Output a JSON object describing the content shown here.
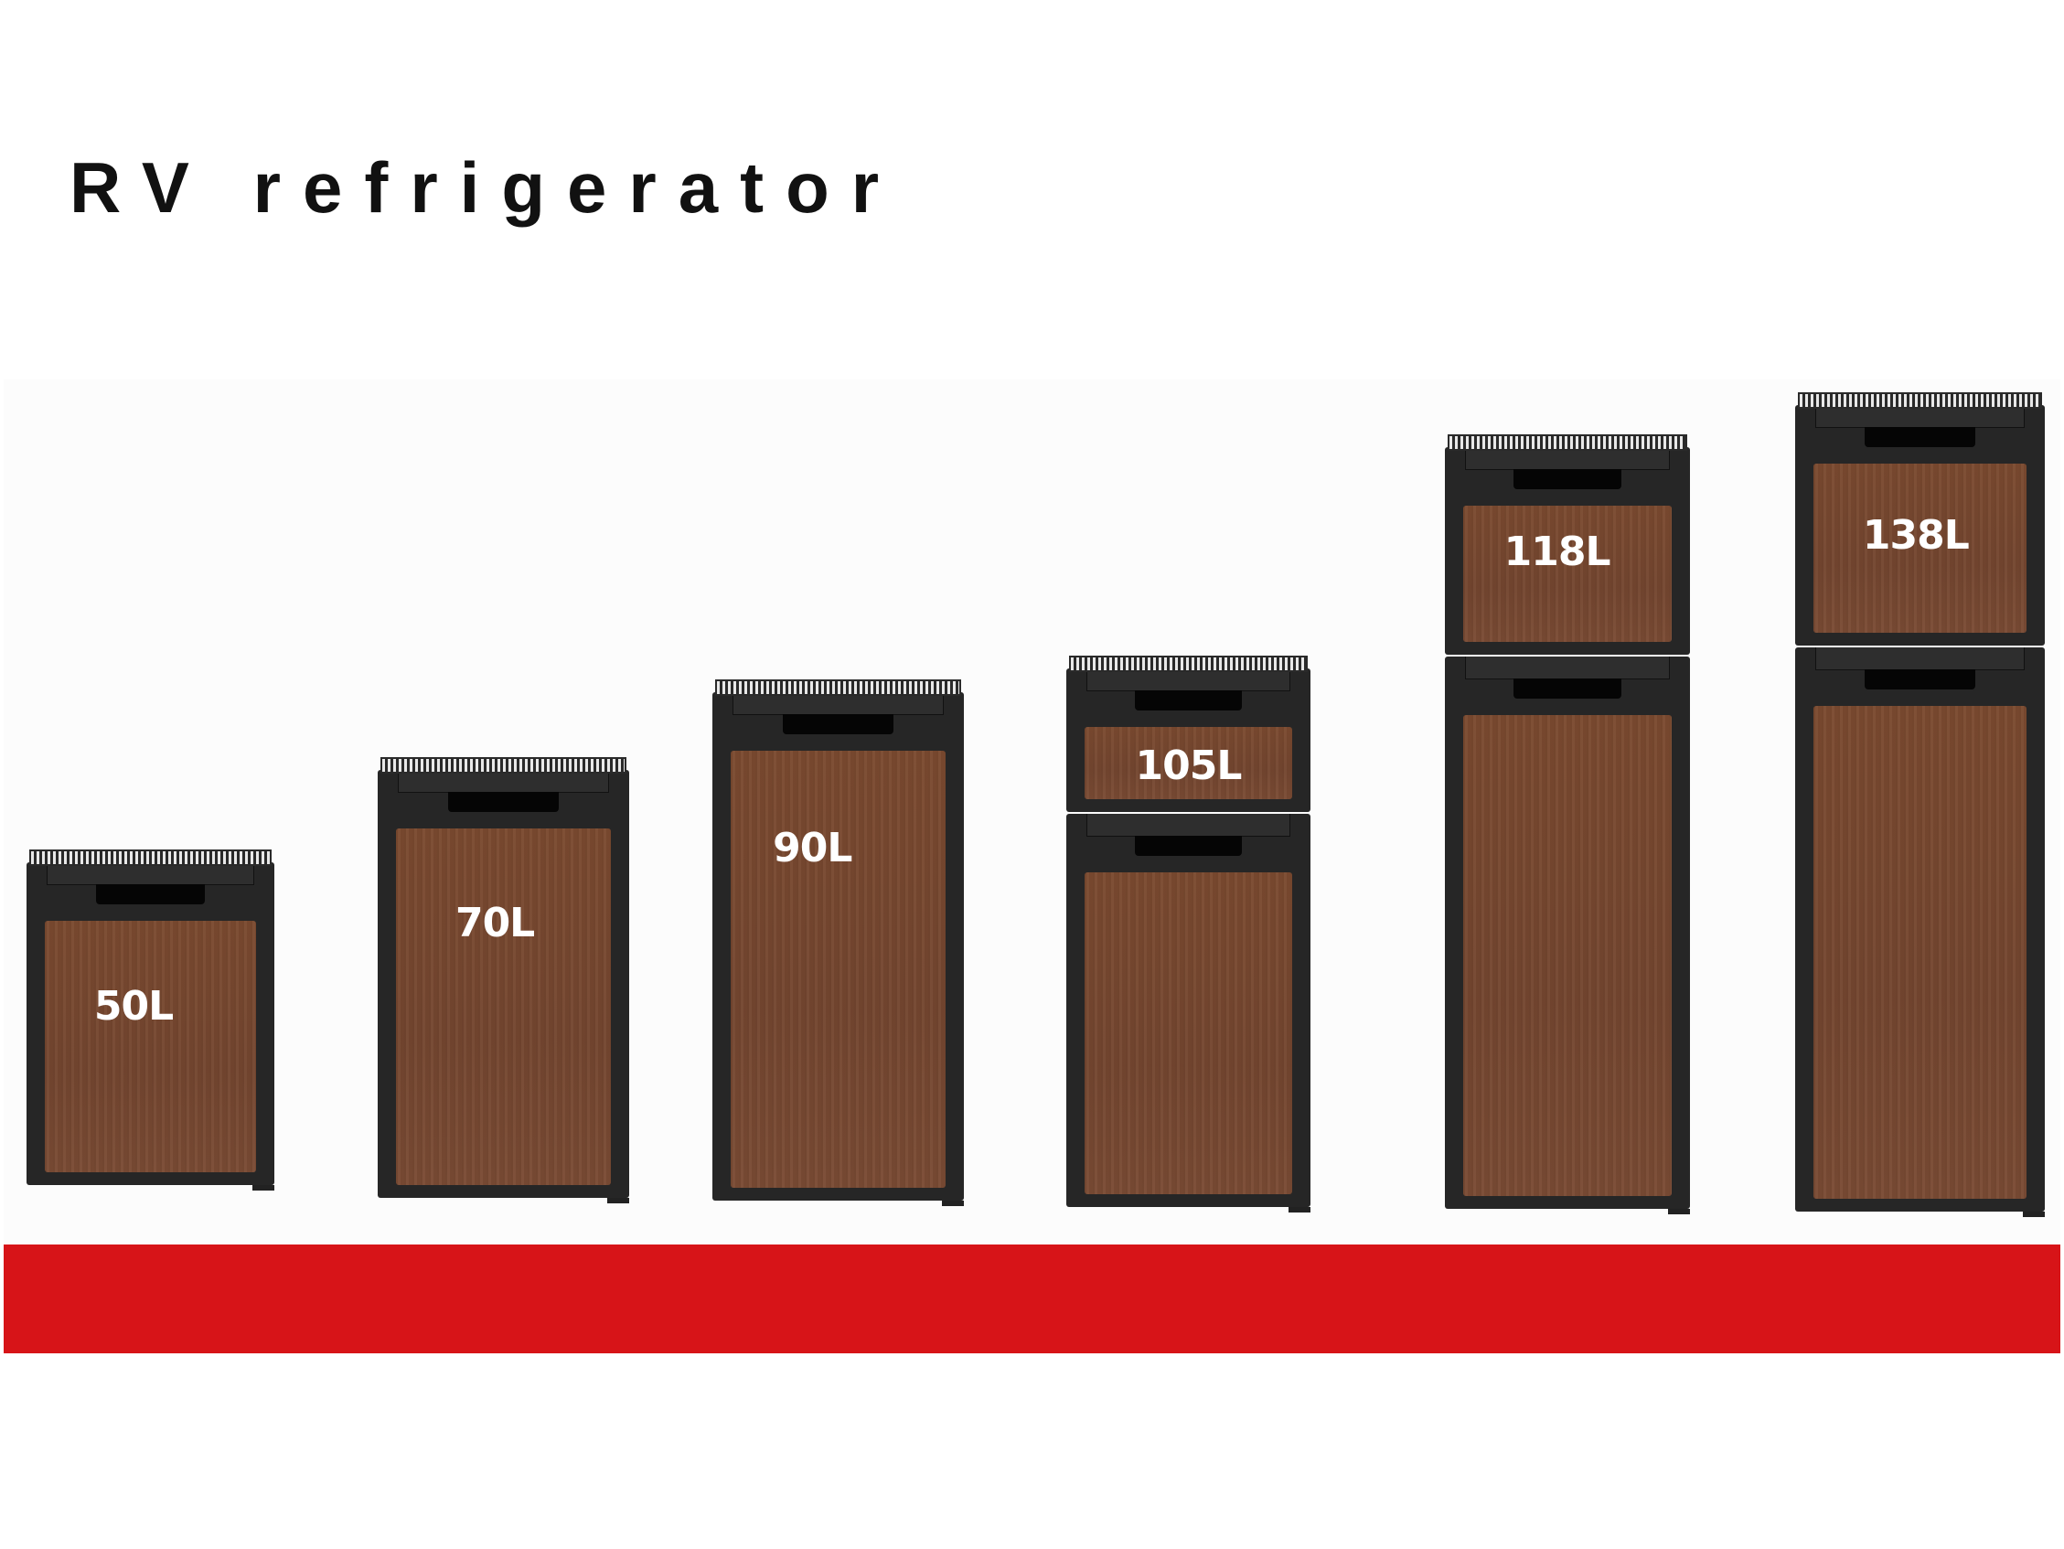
{
  "title": "RV refrigerator",
  "colors": {
    "band": "#d71418",
    "cabinet": "#262626",
    "door_wood": "#7a4a32"
  },
  "fridges": [
    {
      "label": "50L",
      "doors": 1
    },
    {
      "label": "70L",
      "doors": 1
    },
    {
      "label": "90L",
      "doors": 1
    },
    {
      "label": "105L",
      "doors": 2
    },
    {
      "label": "118L",
      "doors": 2
    },
    {
      "label": "138L",
      "doors": 2
    }
  ]
}
